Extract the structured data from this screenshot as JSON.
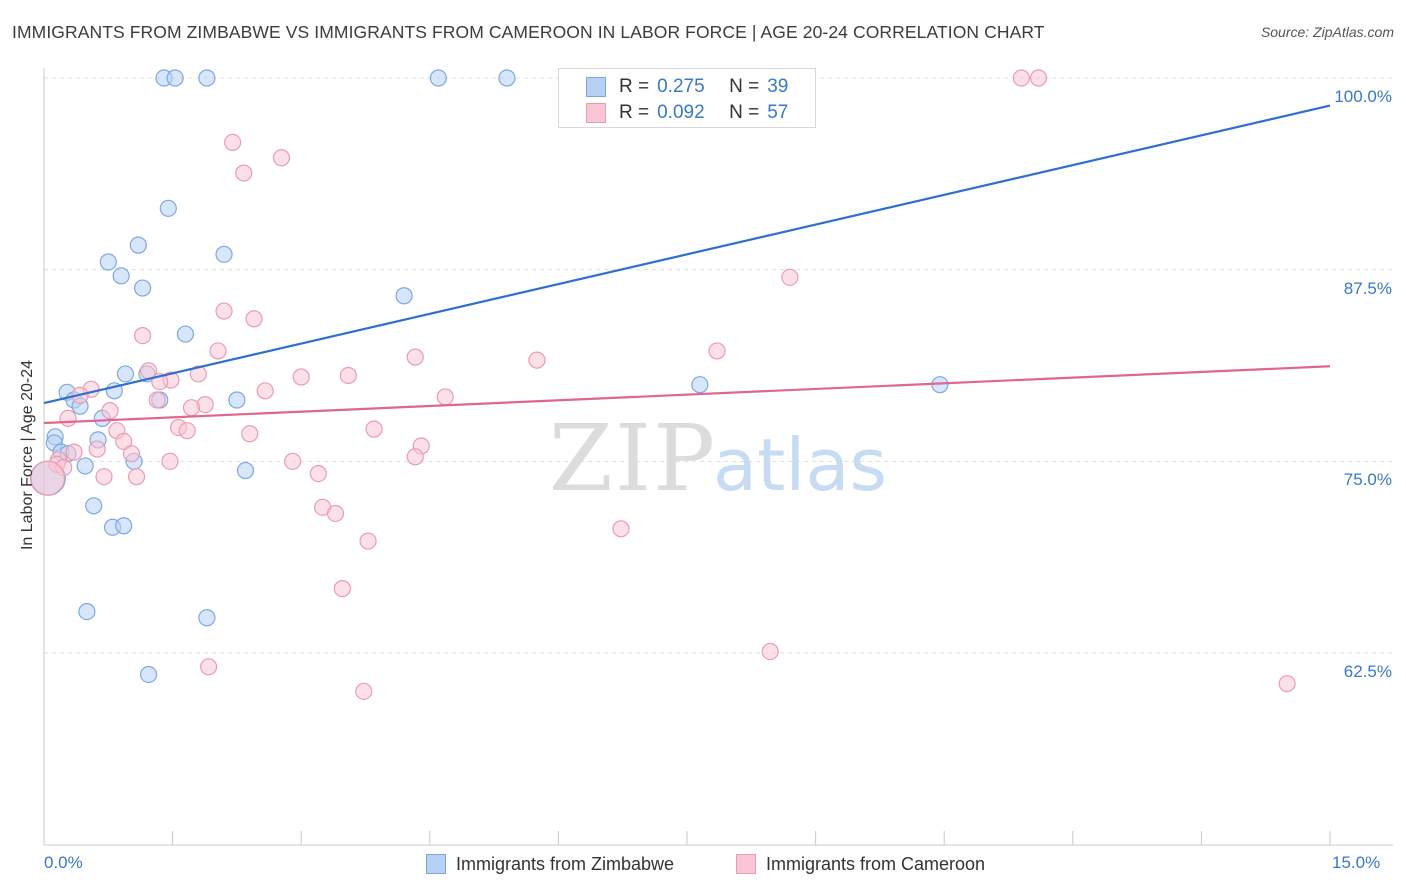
{
  "title": "IMMIGRANTS FROM ZIMBABWE VS IMMIGRANTS FROM CAMEROON IN LABOR FORCE | AGE 20-24 CORRELATION CHART",
  "source": "Source: ZipAtlas.com",
  "watermark": {
    "zip": "ZIP",
    "atlas": "atlas"
  },
  "legend": {
    "rows": [
      {
        "r_label": "R =",
        "r_value": "0.275",
        "n_label": "N =",
        "n_value": "39",
        "fill": "#b7d1f5",
        "stroke": "#7ea8e0"
      },
      {
        "r_label": "R =",
        "r_value": "0.092",
        "n_label": "N =",
        "n_value": "57",
        "fill": "#f9c6d5",
        "stroke": "#eb9bb4"
      }
    ]
  },
  "bottom_legend": {
    "series1": "Immigrants from Zimbabwe",
    "series2": "Immigrants from Cameroon"
  },
  "chart_data": {
    "type": "scatter",
    "title": "IMMIGRANTS FROM ZIMBABWE VS IMMIGRANTS FROM CAMEROON IN LABOR FORCE | AGE 20-24 CORRELATION CHART",
    "xlabel": "",
    "ylabel": "In Labor Force | Age 20-24",
    "xlim": [
      0,
      15
    ],
    "ylim": [
      50,
      101.5
    ],
    "x_tick_labels": [
      "0.0%",
      "15.0%"
    ],
    "y_ticks": [
      62.5,
      75.0,
      87.5,
      100.0
    ],
    "y_tick_labels": [
      "62.5%",
      "75.0%",
      "87.5%",
      "100.0%"
    ],
    "grid": true,
    "series": [
      {
        "name": "Immigrants from Zimbabwe",
        "color": "#7ea8e0",
        "fill": "#b7d1f5",
        "line_color": "#2f6fd1",
        "trend": {
          "x": [
            0,
            15
          ],
          "y": [
            78.8,
            98.2
          ]
        },
        "points": [
          {
            "x": 1.4,
            "y": 100
          },
          {
            "x": 1.53,
            "y": 100
          },
          {
            "x": 1.9,
            "y": 100
          },
          {
            "x": 4.6,
            "y": 100
          },
          {
            "x": 5.4,
            "y": 100
          },
          {
            "x": 1.45,
            "y": 91.5
          },
          {
            "x": 1.1,
            "y": 89.1
          },
          {
            "x": 2.1,
            "y": 88.5
          },
          {
            "x": 0.75,
            "y": 88.0
          },
          {
            "x": 0.9,
            "y": 87.1
          },
          {
            "x": 1.15,
            "y": 86.3
          },
          {
            "x": 4.2,
            "y": 85.8
          },
          {
            "x": 1.65,
            "y": 83.3
          },
          {
            "x": 0.95,
            "y": 80.7
          },
          {
            "x": 1.2,
            "y": 80.7
          },
          {
            "x": 7.65,
            "y": 80.0
          },
          {
            "x": 10.45,
            "y": 80.0
          },
          {
            "x": 0.82,
            "y": 79.6
          },
          {
            "x": 0.27,
            "y": 79.5
          },
          {
            "x": 0.35,
            "y": 79.0
          },
          {
            "x": 1.35,
            "y": 79.0
          },
          {
            "x": 2.25,
            "y": 79.0
          },
          {
            "x": 0.42,
            "y": 78.6
          },
          {
            "x": 0.68,
            "y": 77.8
          },
          {
            "x": 0.13,
            "y": 76.6
          },
          {
            "x": 0.12,
            "y": 76.2
          },
          {
            "x": 0.63,
            "y": 76.4
          },
          {
            "x": 0.2,
            "y": 75.6
          },
          {
            "x": 0.28,
            "y": 75.5
          },
          {
            "x": 1.05,
            "y": 75.0
          },
          {
            "x": 0.48,
            "y": 74.7
          },
          {
            "x": 2.35,
            "y": 74.4
          },
          {
            "x": 0.58,
            "y": 72.1
          },
          {
            "x": 0.8,
            "y": 70.7
          },
          {
            "x": 0.93,
            "y": 70.8
          },
          {
            "x": 0.05,
            "y": 73.9
          },
          {
            "x": 0.5,
            "y": 65.2
          },
          {
            "x": 1.9,
            "y": 64.8
          },
          {
            "x": 1.22,
            "y": 61.1
          }
        ]
      },
      {
        "name": "Immigrants from Cameroon",
        "color": "#eb9bb4",
        "fill": "#f9c6d5",
        "line_color": "#e0668e",
        "trend": {
          "x": [
            0,
            15
          ],
          "y": [
            77.5,
            81.2
          ]
        },
        "points": [
          {
            "x": 11.4,
            "y": 100
          },
          {
            "x": 11.6,
            "y": 100
          },
          {
            "x": 2.2,
            "y": 95.8
          },
          {
            "x": 2.77,
            "y": 94.8
          },
          {
            "x": 2.33,
            "y": 93.8
          },
          {
            "x": 8.7,
            "y": 87.0
          },
          {
            "x": 2.1,
            "y": 84.8
          },
          {
            "x": 2.45,
            "y": 84.3
          },
          {
            "x": 1.15,
            "y": 83.2
          },
          {
            "x": 2.03,
            "y": 82.2
          },
          {
            "x": 7.85,
            "y": 82.2
          },
          {
            "x": 4.33,
            "y": 81.8
          },
          {
            "x": 5.75,
            "y": 81.6
          },
          {
            "x": 1.22,
            "y": 80.9
          },
          {
            "x": 1.8,
            "y": 80.7
          },
          {
            "x": 3.0,
            "y": 80.5
          },
          {
            "x": 3.55,
            "y": 80.6
          },
          {
            "x": 1.48,
            "y": 80.3
          },
          {
            "x": 1.35,
            "y": 80.2
          },
          {
            "x": 0.55,
            "y": 79.7
          },
          {
            "x": 2.58,
            "y": 79.6
          },
          {
            "x": 0.42,
            "y": 79.3
          },
          {
            "x": 4.68,
            "y": 79.2
          },
          {
            "x": 1.32,
            "y": 79.0
          },
          {
            "x": 1.88,
            "y": 78.7
          },
          {
            "x": 1.72,
            "y": 78.5
          },
          {
            "x": 0.77,
            "y": 78.3
          },
          {
            "x": 0.28,
            "y": 77.8
          },
          {
            "x": 1.57,
            "y": 77.2
          },
          {
            "x": 1.67,
            "y": 77.0
          },
          {
            "x": 0.85,
            "y": 77.0
          },
          {
            "x": 3.85,
            "y": 77.1
          },
          {
            "x": 2.4,
            "y": 76.8
          },
          {
            "x": 0.93,
            "y": 76.3
          },
          {
            "x": 4.4,
            "y": 76.0
          },
          {
            "x": 0.62,
            "y": 75.8
          },
          {
            "x": 0.35,
            "y": 75.6
          },
          {
            "x": 1.02,
            "y": 75.5
          },
          {
            "x": 4.33,
            "y": 75.3
          },
          {
            "x": 0.17,
            "y": 75.1
          },
          {
            "x": 1.47,
            "y": 75.0
          },
          {
            "x": 2.9,
            "y": 75.0
          },
          {
            "x": 0.15,
            "y": 74.8
          },
          {
            "x": 0.23,
            "y": 74.6
          },
          {
            "x": 3.2,
            "y": 74.2
          },
          {
            "x": 0.7,
            "y": 74.0
          },
          {
            "x": 1.08,
            "y": 74.0
          },
          {
            "x": 0.04,
            "y": 73.9
          },
          {
            "x": 3.25,
            "y": 72.0
          },
          {
            "x": 3.4,
            "y": 71.6
          },
          {
            "x": 6.73,
            "y": 70.6
          },
          {
            "x": 3.78,
            "y": 69.8
          },
          {
            "x": 3.48,
            "y": 66.7
          },
          {
            "x": 1.92,
            "y": 61.6
          },
          {
            "x": 8.47,
            "y": 62.6
          },
          {
            "x": 3.73,
            "y": 60.0
          },
          {
            "x": 14.5,
            "y": 60.5
          }
        ]
      }
    ]
  }
}
